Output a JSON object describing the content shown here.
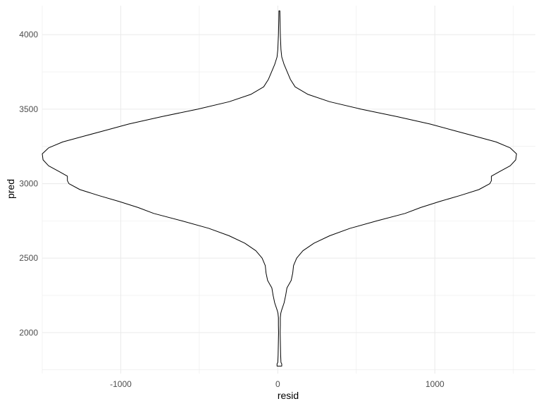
{
  "chart_data": {
    "type": "violin",
    "title": "",
    "xlabel": "resid",
    "ylabel": "pred",
    "xlim": [
      -1500,
      1640
    ],
    "ylim": [
      1725,
      4195
    ],
    "x_ticks": [
      -1000,
      0,
      1000
    ],
    "y_ticks": [
      2000,
      2500,
      3000,
      3500,
      4000
    ],
    "x_tick_labels": [
      "-1000",
      "0",
      "1000"
    ],
    "y_tick_labels": [
      "2000",
      "2500",
      "3000",
      "3500",
      "4000"
    ],
    "grid": true,
    "theme": "minimal",
    "center_x": 10,
    "series": [
      {
        "profile": [
          [
            1775,
            15
          ],
          [
            1790,
            15
          ],
          [
            1800,
            10
          ],
          [
            1850,
            8
          ],
          [
            1900,
            7
          ],
          [
            1950,
            6
          ],
          [
            2000,
            5
          ],
          [
            2050,
            6
          ],
          [
            2100,
            6
          ],
          [
            2130,
            9
          ],
          [
            2150,
            14
          ],
          [
            2200,
            30
          ],
          [
            2250,
            40
          ],
          [
            2300,
            48
          ],
          [
            2350,
            75
          ],
          [
            2400,
            85
          ],
          [
            2450,
            90
          ],
          [
            2500,
            110
          ],
          [
            2550,
            150
          ],
          [
            2600,
            220
          ],
          [
            2650,
            320
          ],
          [
            2700,
            450
          ],
          [
            2750,
            620
          ],
          [
            2800,
            800
          ],
          [
            2840,
            900
          ],
          [
            2880,
            1020
          ],
          [
            2920,
            1150
          ],
          [
            2960,
            1270
          ],
          [
            3000,
            1340
          ],
          [
            3020,
            1350
          ],
          [
            3050,
            1350
          ],
          [
            3080,
            1400
          ],
          [
            3120,
            1470
          ],
          [
            3160,
            1505
          ],
          [
            3200,
            1510
          ],
          [
            3240,
            1470
          ],
          [
            3280,
            1380
          ],
          [
            3320,
            1240
          ],
          [
            3360,
            1100
          ],
          [
            3400,
            960
          ],
          [
            3450,
            750
          ],
          [
            3500,
            520
          ],
          [
            3550,
            320
          ],
          [
            3600,
            180
          ],
          [
            3650,
            100
          ],
          [
            3700,
            70
          ],
          [
            3750,
            50
          ],
          [
            3800,
            30
          ],
          [
            3850,
            15
          ],
          [
            3900,
            10
          ],
          [
            3950,
            8
          ],
          [
            4000,
            6
          ],
          [
            4050,
            5
          ],
          [
            4100,
            4
          ],
          [
            4160,
            3
          ]
        ]
      }
    ],
    "colors": {
      "outline": "#000000",
      "fill": "#ffffff",
      "grid": "#ebebeb",
      "tick_text": "#4d4d4d"
    }
  }
}
